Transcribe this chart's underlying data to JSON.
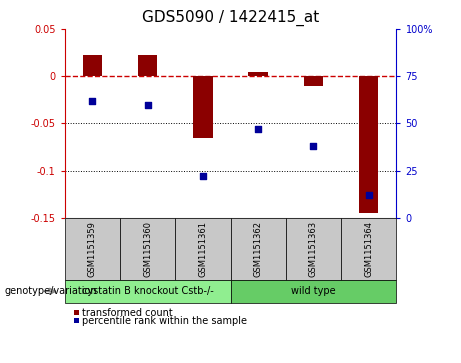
{
  "title": "GDS5090 / 1422415_at",
  "samples": [
    "GSM1151359",
    "GSM1151360",
    "GSM1151361",
    "GSM1151362",
    "GSM1151363",
    "GSM1151364"
  ],
  "bar_values": [
    0.022,
    0.022,
    -0.065,
    0.005,
    -0.01,
    -0.145
  ],
  "dot_values": [
    62,
    60,
    22,
    47,
    38,
    12
  ],
  "groups": [
    {
      "label": "cystatin B knockout Cstb-/-",
      "start": 0,
      "end": 3,
      "color": "#90EE90"
    },
    {
      "label": "wild type",
      "start": 3,
      "end": 6,
      "color": "#66CC66"
    }
  ],
  "ylim_left": [
    -0.15,
    0.05
  ],
  "ylim_right": [
    0,
    100
  ],
  "yticks_left": [
    0.05,
    0,
    -0.05,
    -0.1,
    -0.15
  ],
  "yticks_right": [
    100,
    75,
    50,
    25,
    0
  ],
  "bar_color": "#8B0000",
  "dot_color": "#000099",
  "bg_color": "#FFFFFF",
  "plot_bg": "#FFFFFF",
  "grid_color": "#000000",
  "dashed_line_color": "#CC0000",
  "left_axis_color": "#CC0000",
  "right_axis_color": "#0000CC",
  "genotype_label": "genotype/variation",
  "legend_bar": "transformed count",
  "legend_dot": "percentile rank within the sample",
  "bar_width": 0.35,
  "title_fontsize": 11,
  "tick_fontsize": 7,
  "sample_fontsize": 6,
  "label_fontsize": 7,
  "legend_fontsize": 7
}
